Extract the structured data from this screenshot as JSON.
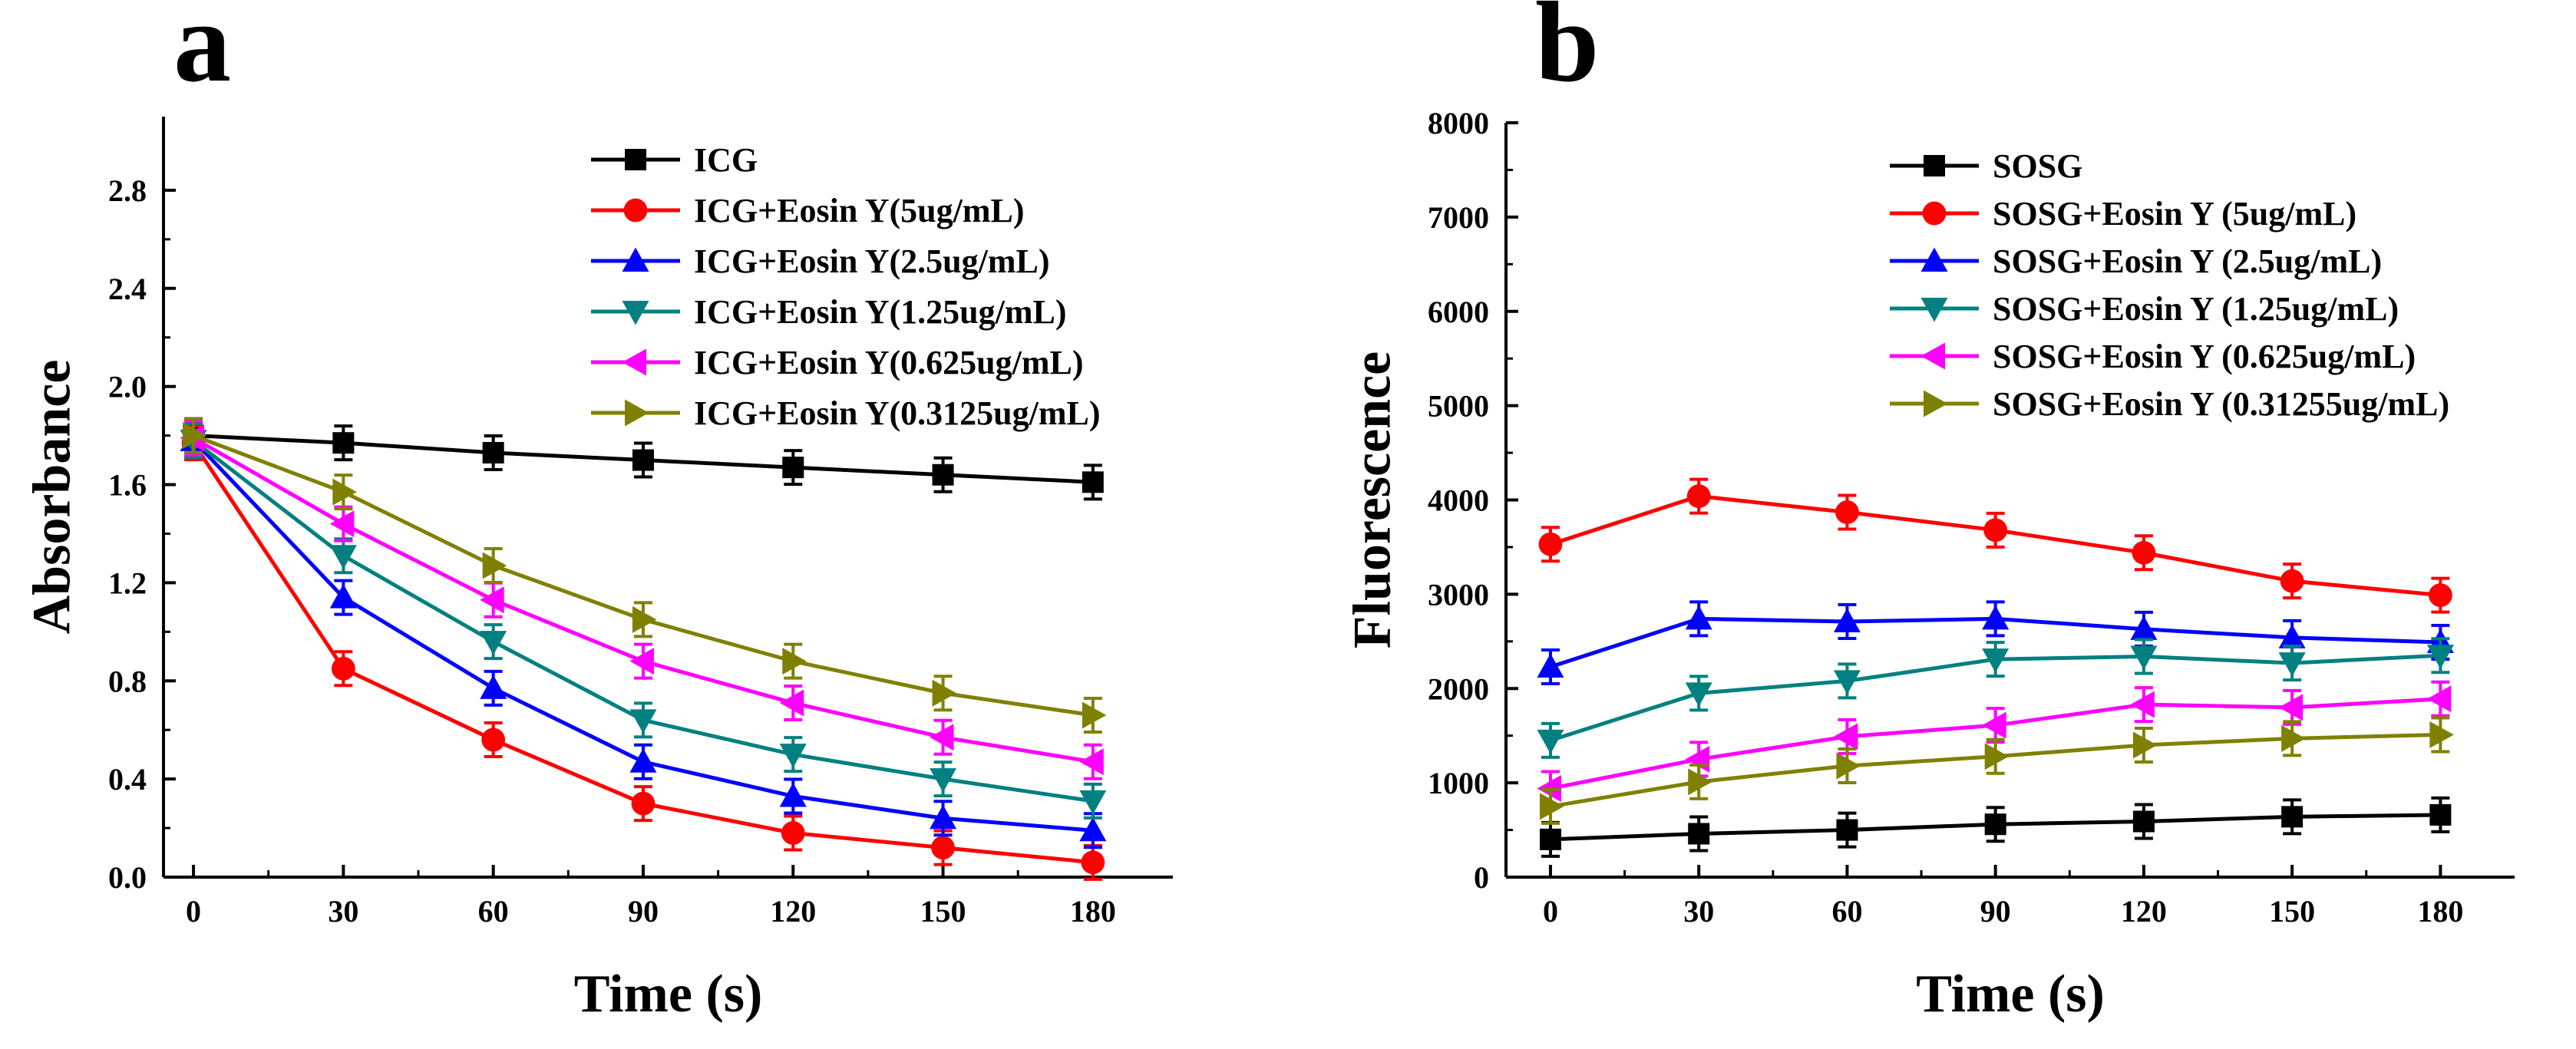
{
  "panels": [
    {
      "letter": "a",
      "chart_data": {
        "type": "line",
        "xlabel": "Time (s)",
        "ylabel": "Absorbance",
        "x": [
          0,
          30,
          60,
          90,
          120,
          150,
          180
        ],
        "xticks": [
          0,
          30,
          60,
          90,
          120,
          150,
          180
        ],
        "xlim": [
          -6,
          196
        ],
        "yticks": [
          0.0,
          0.4,
          0.8,
          1.2,
          1.6,
          2.0,
          2.4,
          2.8
        ],
        "ytick_labels": [
          "0.0",
          "0.4",
          "0.8",
          "1.2",
          "1.6",
          "2.0",
          "2.4",
          "2.8"
        ],
        "ylim": [
          0,
          3.1
        ],
        "legend_position": "top-right",
        "series": [
          {
            "name": "ICG",
            "color": "#000000",
            "marker": "square",
            "values": [
              1.8,
              1.77,
              1.73,
              1.7,
              1.67,
              1.64,
              1.61
            ]
          },
          {
            "name": "ICG+Eosin Y(5ug/mL)",
            "color": "#ff0000",
            "marker": "circle",
            "values": [
              1.77,
              0.85,
              0.56,
              0.3,
              0.18,
              0.12,
              0.06
            ]
          },
          {
            "name": "ICG+Eosin Y(2.5ug/mL)",
            "color": "#0000ff",
            "marker": "triangle-up",
            "values": [
              1.78,
              1.14,
              0.77,
              0.47,
              0.33,
              0.24,
              0.19
            ]
          },
          {
            "name": "ICG+Eosin Y(1.25ug/mL)",
            "color": "#008080",
            "marker": "triangle-down",
            "values": [
              1.78,
              1.31,
              0.96,
              0.64,
              0.5,
              0.4,
              0.31
            ]
          },
          {
            "name": "ICG+Eosin Y(0.625ug/mL)",
            "color": "#ff00ff",
            "marker": "triangle-left",
            "values": [
              1.79,
              1.44,
              1.13,
              0.88,
              0.71,
              0.57,
              0.47
            ]
          },
          {
            "name": "ICG+Eosin Y(0.3125ug/mL)",
            "color": "#808000",
            "marker": "triangle-right",
            "values": [
              1.8,
              1.57,
              1.27,
              1.05,
              0.88,
              0.75,
              0.66
            ]
          }
        ]
      }
    },
    {
      "letter": "b",
      "chart_data": {
        "type": "line",
        "xlabel": "Time (s)",
        "ylabel": "Fluorescence",
        "x": [
          0,
          30,
          60,
          90,
          120,
          150,
          180
        ],
        "xticks": [
          0,
          30,
          60,
          90,
          120,
          150,
          180
        ],
        "xlim": [
          -9,
          195
        ],
        "yticks": [
          0,
          1000,
          2000,
          3000,
          4000,
          5000,
          6000,
          7000,
          8000
        ],
        "ytick_labels": [
          "0",
          "1000",
          "2000",
          "3000",
          "4000",
          "5000",
          "6000",
          "7000",
          "8000"
        ],
        "ylim": [
          0,
          8000
        ],
        "legend_position": "top-right",
        "series": [
          {
            "name": "SOSG",
            "color": "#000000",
            "marker": "square",
            "values": [
              400,
              460,
              500,
              560,
              590,
              640,
              660
            ]
          },
          {
            "name": "SOSG+Eosin Y (5ug/mL)",
            "color": "#ff0000",
            "marker": "circle",
            "values": [
              3530,
              4040,
              3870,
              3680,
              3440,
              3140,
              2990
            ]
          },
          {
            "name": "SOSG+Eosin Y (2.5ug/mL)",
            "color": "#0000ff",
            "marker": "triangle-up",
            "values": [
              2230,
              2740,
              2710,
              2740,
              2630,
              2540,
              2490
            ]
          },
          {
            "name": "SOSG+Eosin Y (1.25ug/mL)",
            "color": "#008080",
            "marker": "triangle-down",
            "values": [
              1450,
              1950,
              2080,
              2310,
              2340,
              2270,
              2350
            ]
          },
          {
            "name": "SOSG+Eosin Y (0.625ug/mL)",
            "color": "#ff00ff",
            "marker": "triangle-left",
            "values": [
              940,
              1250,
              1490,
              1610,
              1830,
              1800,
              1890
            ]
          },
          {
            "name": "SOSG+Eosin Y (0.31255ug/mL)",
            "color": "#808000",
            "marker": "triangle-right",
            "values": [
              750,
              1010,
              1180,
              1280,
              1400,
              1470,
              1510
            ]
          }
        ]
      }
    }
  ]
}
